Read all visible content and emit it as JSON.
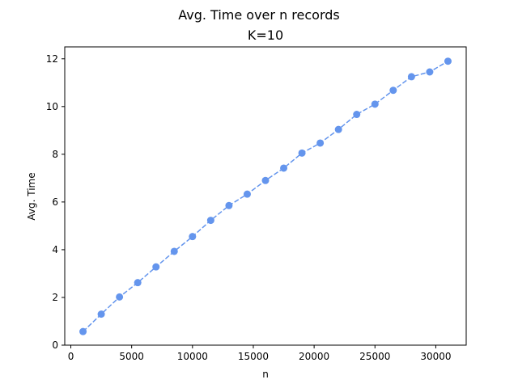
{
  "chart_data": {
    "type": "line",
    "title": "Avg. Time over n records",
    "subtitle": "K=10",
    "xlabel": "n",
    "ylabel": "Avg. Time",
    "xlim": [
      -500,
      32500
    ],
    "ylim": [
      0,
      12.5
    ],
    "xticks": [
      0,
      5000,
      10000,
      15000,
      20000,
      25000,
      30000
    ],
    "yticks": [
      0,
      2,
      4,
      6,
      8,
      10,
      12
    ],
    "grid": false,
    "line_style": "dashed",
    "marker": "circle",
    "color": "#6495ed",
    "series": [
      {
        "x": [
          1000,
          2500,
          4000,
          5500,
          7000,
          8500,
          10000,
          11500,
          13000,
          14500,
          16000,
          17500,
          19000,
          20500,
          22000,
          23500,
          25000,
          26500,
          28000,
          29500,
          31000
        ],
        "y": [
          0.57,
          1.3,
          2.02,
          2.62,
          3.28,
          3.93,
          4.55,
          5.23,
          5.85,
          6.33,
          6.9,
          7.42,
          8.05,
          8.47,
          9.04,
          9.67,
          10.1,
          10.68,
          11.25,
          11.45,
          11.9
        ]
      }
    ]
  }
}
